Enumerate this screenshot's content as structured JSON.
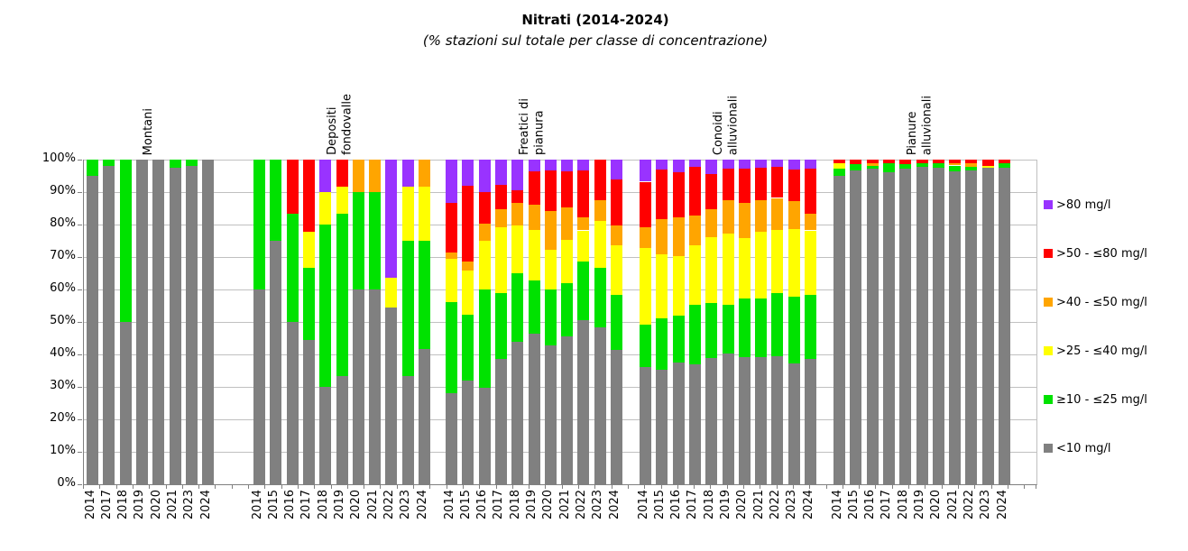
{
  "chart_data": {
    "type": "bar",
    "stacked": true,
    "title": "Nitrati (2014-2024)",
    "subtitle": "(% stazioni sul totale per classe di concentrazione)",
    "ylim": [
      0,
      100
    ],
    "grid": true,
    "legend_position": "right",
    "y_ticks": [
      "0%",
      "10%",
      "20%",
      "30%",
      "40%",
      "50%",
      "60%",
      "70%",
      "80%",
      "90%",
      "100%"
    ],
    "classes": [
      {
        "key": "gt80",
        "label": ">80 mg/l",
        "color": "#9933FF"
      },
      {
        "key": "r50_80",
        "label": ">50 - ≤80 mg/l",
        "color": "#FF0000"
      },
      {
        "key": "r40_50",
        "label": ">40 - ≤50 mg/l",
        "color": "#FFA500"
      },
      {
        "key": "r25_40",
        "label": ">25 - ≤40 mg/l",
        "color": "#FFFF00"
      },
      {
        "key": "r10_25",
        "label": "≥10 - ≤25 mg/l",
        "color": "#00E200"
      },
      {
        "key": "lt10",
        "label": "<10 mg/l",
        "color": "#808080"
      }
    ],
    "values_order": [
      "lt10",
      "r10_25",
      "r25_40",
      "r40_50",
      "r50_80",
      "gt80"
    ],
    "groups": [
      {
        "name": "Montani",
        "bars": [
          {
            "year": "2014",
            "values": [
              95,
              5,
              0,
              0,
              0,
              0
            ]
          },
          {
            "year": "2017",
            "values": [
              98,
              2,
              0,
              0,
              0,
              0
            ]
          },
          {
            "year": "2018",
            "values": [
              50,
              50,
              0,
              0,
              0,
              0
            ]
          },
          {
            "year": "2019",
            "values": [
              100,
              0,
              0,
              0,
              0,
              0
            ]
          },
          {
            "year": "2020",
            "values": [
              100,
              0,
              0,
              0,
              0,
              0
            ]
          },
          {
            "year": "2021",
            "values": [
              97.5,
              2.5,
              0,
              0,
              0,
              0
            ]
          },
          {
            "year": "2023",
            "values": [
              98,
              2,
              0,
              0,
              0,
              0
            ]
          },
          {
            "year": "2024",
            "values": [
              100,
              0,
              0,
              0,
              0,
              0
            ]
          }
        ]
      },
      {
        "name": "Depositi\nfondovalle",
        "bars": [
          {
            "year": "2014",
            "values": [
              60,
              40,
              0,
              0,
              0,
              0
            ]
          },
          {
            "year": "2015",
            "values": [
              75,
              25,
              0,
              0,
              0,
              0
            ]
          },
          {
            "year": "2016",
            "values": [
              50,
              33.3,
              0,
              0,
              16.7,
              0
            ]
          },
          {
            "year": "2017",
            "values": [
              44.4,
              22.2,
              11.2,
              0,
              22.2,
              0
            ]
          },
          {
            "year": "2018",
            "values": [
              30,
              50,
              10,
              0,
              0,
              10
            ]
          },
          {
            "year": "2019",
            "values": [
              33.3,
              50,
              8.4,
              0,
              8.3,
              0
            ]
          },
          {
            "year": "2020",
            "values": [
              60,
              30,
              0,
              10,
              0,
              0
            ]
          },
          {
            "year": "2021",
            "values": [
              60,
              30,
              0,
              10,
              0,
              0
            ]
          },
          {
            "year": "2022",
            "values": [
              54.5,
              0,
              9.1,
              0,
              0,
              36.4
            ]
          },
          {
            "year": "2023",
            "values": [
              33.3,
              41.7,
              16.7,
              0,
              0,
              8.3
            ]
          },
          {
            "year": "2024",
            "values": [
              41.7,
              33.3,
              16.7,
              8.3,
              0,
              0
            ]
          }
        ]
      },
      {
        "name": "Freatici di\npianura",
        "bars": [
          {
            "year": "2014",
            "values": [
              28.1,
              28.0,
              13.3,
              1.9,
              15.3,
              13.4
            ]
          },
          {
            "year": "2015",
            "values": [
              31.9,
              20.2,
              13.7,
              2.7,
              23.4,
              8.1
            ]
          },
          {
            "year": "2016",
            "values": [
              29.7,
              30.3,
              15.0,
              5.3,
              9.7,
              10.0
            ]
          },
          {
            "year": "2017",
            "values": [
              38.5,
              20.4,
              20.3,
              5.5,
              7.4,
              7.9
            ]
          },
          {
            "year": "2018",
            "values": [
              43.9,
              21.0,
              14.9,
              7.0,
              3.7,
              9.5
            ]
          },
          {
            "year": "2019",
            "values": [
              46.4,
              16.5,
              15.3,
              7.9,
              10.2,
              3.7
            ]
          },
          {
            "year": "2020",
            "values": [
              42.7,
              17.3,
              12.2,
              12.1,
              12.3,
              3.4
            ]
          },
          {
            "year": "2021",
            "values": [
              45.5,
              16.4,
              13.4,
              9.9,
              11.1,
              3.7
            ]
          },
          {
            "year": "2022",
            "values": [
              50.6,
              17.9,
              9.7,
              3.9,
              14.5,
              3.4
            ]
          },
          {
            "year": "2023",
            "values": [
              48.4,
              18.2,
              14.4,
              6.5,
              12.5,
              0
            ]
          },
          {
            "year": "2024",
            "values": [
              41.5,
              16.9,
              15.2,
              6.2,
              14.2,
              6.0
            ]
          }
        ]
      },
      {
        "name": "Conoidi\nalluvionali",
        "bars": [
          {
            "year": "2014",
            "values": [
              36.0,
              13.2,
              23.5,
              6.5,
              14.0,
              6.8
            ]
          },
          {
            "year": "2015",
            "values": [
              35.3,
              15.7,
              19.8,
              10.9,
              15.2,
              3.1
            ]
          },
          {
            "year": "2016",
            "values": [
              37.4,
              14.6,
              18.4,
              11.7,
              13.9,
              4.0
            ]
          },
          {
            "year": "2017",
            "values": [
              36.9,
              18.3,
              18.4,
              9.3,
              14.8,
              2.3
            ]
          },
          {
            "year": "2018",
            "values": [
              39.0,
              16.8,
              20.3,
              8.6,
              10.9,
              4.4
            ]
          },
          {
            "year": "2019",
            "values": [
              40.4,
              15.0,
              21.9,
              10.2,
              9.7,
              2.8
            ]
          },
          {
            "year": "2020",
            "values": [
              39.2,
              18.1,
              18.6,
              10.7,
              10.6,
              2.8
            ]
          },
          {
            "year": "2021",
            "values": [
              39.2,
              18.0,
              20.6,
              9.7,
              10.0,
              2.5
            ]
          },
          {
            "year": "2022",
            "values": [
              39.4,
              19.5,
              19.5,
              9.8,
              9.5,
              2.3
            ]
          },
          {
            "year": "2023",
            "values": [
              37.3,
              20.4,
              21.0,
              8.6,
              9.6,
              3.1
            ]
          },
          {
            "year": "2024",
            "values": [
              38.5,
              19.9,
              19.8,
              5.1,
              13.9,
              2.8
            ]
          }
        ]
      },
      {
        "name": "Pianure\nalluvionali",
        "bars": [
          {
            "year": "2014",
            "values": [
              94.9,
              2.3,
              1.7,
              0,
              1.1,
              0
            ]
          },
          {
            "year": "2015",
            "values": [
              96.8,
              1.7,
              0,
              0,
              1.5,
              0
            ]
          },
          {
            "year": "2016",
            "values": [
              97.1,
              0.9,
              0,
              0.9,
              1.1,
              0
            ]
          },
          {
            "year": "2017",
            "values": [
              96.1,
              2.7,
              0,
              0,
              1.2,
              0
            ]
          },
          {
            "year": "2018",
            "values": [
              97.1,
              1.6,
              0,
              0,
              1.3,
              0
            ]
          },
          {
            "year": "2019",
            "values": [
              97.9,
              1.1,
              0,
              0,
              1.0,
              0
            ]
          },
          {
            "year": "2020",
            "values": [
              97.6,
              1.3,
              0,
              0,
              1.1,
              0
            ]
          },
          {
            "year": "2021",
            "values": [
              96.3,
              1.9,
              0,
              0.7,
              1.1,
              0
            ]
          },
          {
            "year": "2022",
            "values": [
              96.7,
              1.2,
              0,
              0.9,
              1.2,
              0
            ]
          },
          {
            "year": "2023",
            "values": [
              97.4,
              0,
              0.6,
              0,
              2.0,
              0
            ]
          },
          {
            "year": "2024",
            "values": [
              97.4,
              1.6,
              0,
              0,
              1.0,
              0
            ]
          }
        ]
      }
    ]
  }
}
